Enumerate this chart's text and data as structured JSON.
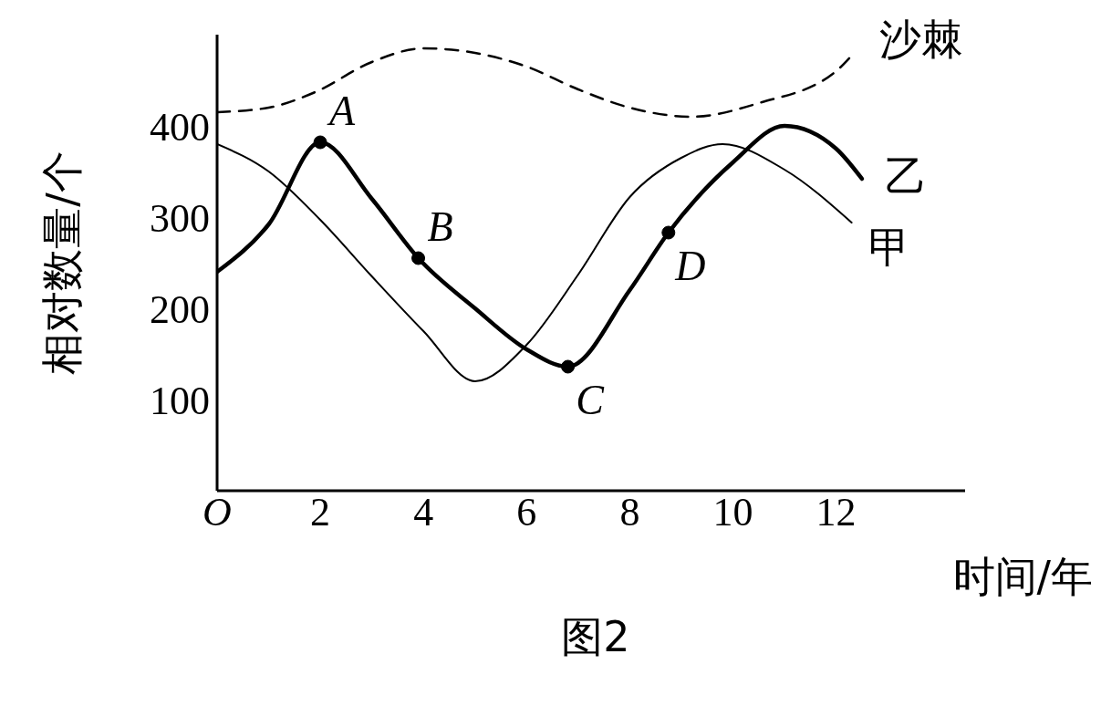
{
  "chart_data": {
    "type": "line",
    "xlabel": "时间/年",
    "ylabel": "相对数量/个",
    "xlim": [
      0,
      14.5
    ],
    "ylim": [
      0,
      500
    ],
    "xticks": [
      {
        "value": 0,
        "label": "O"
      },
      2,
      4,
      6,
      8,
      10,
      12
    ],
    "yticks": [
      100,
      200,
      300,
      400
    ],
    "marker": "none",
    "series": [
      {
        "name": "甲",
        "color": "#000000",
        "line_style": "solid",
        "x": [
          0,
          1,
          2,
          3,
          4,
          5,
          6,
          7,
          8,
          9,
          9.8,
          11,
          12.3
        ],
        "values": [
          380,
          350,
          297,
          235,
          175,
          120,
          160,
          237,
          322,
          365,
          380,
          352,
          294
        ]
      },
      {
        "name": "乙",
        "color": "#000000",
        "line_style": "solid",
        "x": [
          0,
          1,
          2,
          3,
          3.9,
          5,
          6,
          6.8,
          8,
          8.75,
          10,
          11,
          12,
          12.5
        ],
        "values": [
          240,
          292,
          382,
          320,
          255,
          200,
          155,
          136,
          220,
          283,
          360,
          400,
          375,
          342
        ]
      },
      {
        "name": "沙棘",
        "color": "#000000",
        "line_style": "dashed",
        "x": [
          0,
          1,
          1.9,
          3,
          4,
          5,
          6,
          7,
          8,
          9.2,
          10.5,
          12,
          12.3
        ],
        "values": [
          415,
          420,
          437,
          470,
          485,
          480,
          465,
          440,
          420,
          410,
          425,
          460,
          477
        ]
      }
    ],
    "annotations": [
      {
        "text": "A",
        "x": 2,
        "y": 382
      },
      {
        "text": "B",
        "x": 3.9,
        "y": 255
      },
      {
        "text": "C",
        "x": 6.8,
        "y": 136
      },
      {
        "text": "D",
        "x": 8.75,
        "y": 283
      },
      "图2"
    ]
  }
}
